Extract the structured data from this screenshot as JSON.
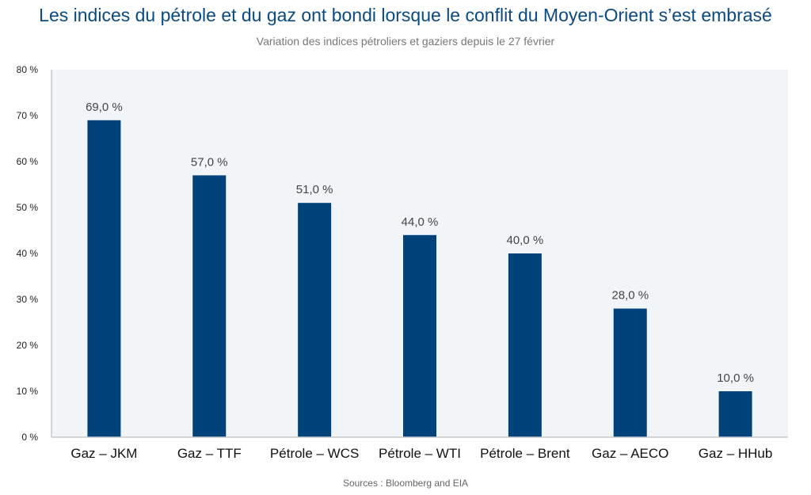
{
  "chart_data": {
    "type": "bar",
    "title": "Les indices du pétrole et du gaz ont bondi lorsque le conflit du Moyen-Orient s’est embrasé",
    "subtitle": "Variation des indices pétroliers et gaziers depuis le 27 février",
    "source": "Sources : Bloomberg and EIA",
    "categories": [
      "Gaz – JKM",
      "Gaz – TTF",
      "Pétrole – WCS",
      "Pétrole – WTI",
      "Pétrole – Brent",
      "Gaz – AECO",
      "Gaz – HHub"
    ],
    "values": [
      69.0,
      57.0,
      51.0,
      44.0,
      40.0,
      28.0,
      10.0
    ],
    "data_labels": [
      "69,0 %",
      "57,0 %",
      "51,0 %",
      "44,0 %",
      "40,0 %",
      "28,0 %",
      "10,0 %"
    ],
    "yticks": [
      0,
      10,
      20,
      30,
      40,
      50,
      60,
      70,
      80
    ],
    "ytick_labels": [
      "0 %",
      "10 %",
      "20 %",
      "30 %",
      "40 %",
      "50 %",
      "60 %",
      "70 %",
      "80 %"
    ],
    "ylim": [
      0,
      80
    ],
    "xlabel": "",
    "ylabel": "",
    "grid": false,
    "colors": {
      "bar": "#00427a",
      "plot_background": "#f2f5f8",
      "axis": "#c8c8c8"
    }
  }
}
